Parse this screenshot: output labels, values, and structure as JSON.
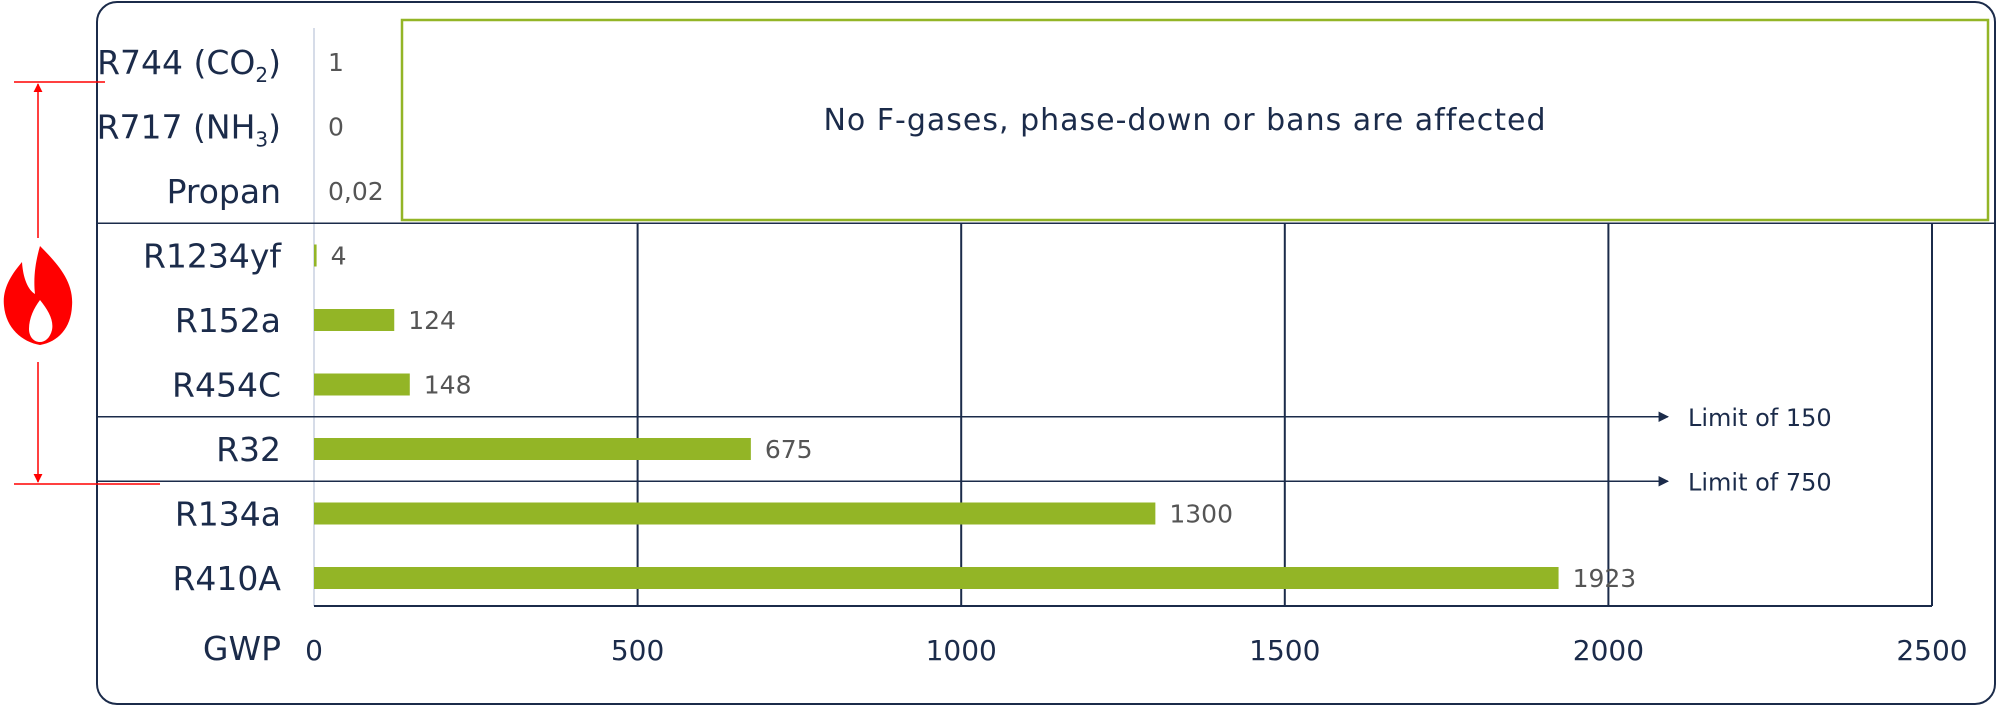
{
  "chart_data": {
    "type": "bar",
    "orientation": "horizontal",
    "categories": [
      "R744 (CO2)",
      "R717 (NH3)",
      "Propan",
      "R1234yf",
      "R152a",
      "R454C",
      "R32",
      "R134a",
      "R410A"
    ],
    "category_labels": [
      {
        "main": "R744 (CO",
        "sub": "2",
        "tail": ")"
      },
      {
        "main": "R717 (NH",
        "sub": "3",
        "tail": ")"
      },
      {
        "main": "Propan",
        "sub": "",
        "tail": ""
      },
      {
        "main": "R1234yf",
        "sub": "",
        "tail": ""
      },
      {
        "main": "R152a",
        "sub": "",
        "tail": ""
      },
      {
        "main": "R454C",
        "sub": "",
        "tail": ""
      },
      {
        "main": "R32",
        "sub": "",
        "tail": ""
      },
      {
        "main": "R134a",
        "sub": "",
        "tail": ""
      },
      {
        "main": "R410A",
        "sub": "",
        "tail": ""
      }
    ],
    "values": [
      1,
      0,
      0.02,
      4,
      124,
      148,
      675,
      1300,
      1923
    ],
    "value_labels": [
      "1",
      "0",
      "0,02",
      "4",
      "124",
      "148",
      "675",
      "1300",
      "1923"
    ],
    "xlabel": "GWP",
    "xlim": [
      0,
      2500
    ],
    "xticks": [
      0,
      500,
      1000,
      1500,
      2000,
      2500
    ],
    "grid": true,
    "bar_color": "#93b526",
    "axis_color": "#1b2b4a",
    "annotation": {
      "text": "No F-gases, phase-down or bans are affected",
      "covers_categories": [
        "R744 (CO2)",
        "R717 (NH3)",
        "Propan"
      ],
      "border_color": "#93b526"
    },
    "limits": [
      {
        "value": 150,
        "label": "Limit of 150",
        "between": [
          "R454C",
          "R32"
        ]
      },
      {
        "value": 750,
        "label": "Limit of 750",
        "between": [
          "R32",
          "R134a"
        ]
      }
    ],
    "flammable_range": {
      "from": "R717 (NH3)",
      "to": "R32",
      "icon": "flame-icon",
      "color": "#ff0000"
    }
  }
}
